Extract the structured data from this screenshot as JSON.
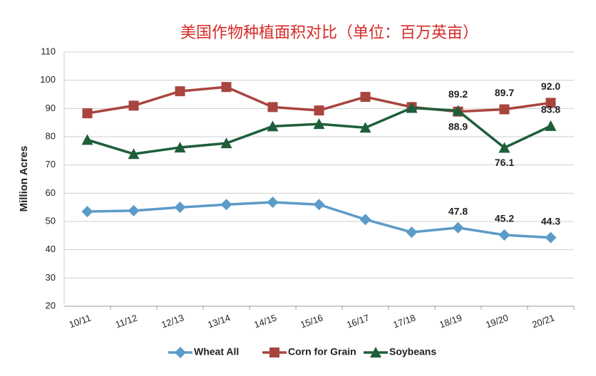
{
  "chart_data": {
    "type": "line",
    "title": "美国作物种植面积对比（单位：百万英亩）",
    "ylabel": "Million Acres",
    "categories": [
      "10/11",
      "11/12",
      "12/13",
      "13/14",
      "14/15",
      "15/16",
      "16/17",
      "17/18",
      "18/19",
      "19/20",
      "20/21"
    ],
    "series": [
      {
        "name": "Wheat All",
        "color": "#5b9bc8",
        "values": [
          53.5,
          53.8,
          55.0,
          56.0,
          56.8,
          56.0,
          50.7,
          46.2,
          47.8,
          45.2,
          44.3
        ],
        "value_labels": [
          null,
          null,
          null,
          null,
          null,
          null,
          null,
          null,
          "47.8",
          "45.2",
          "44.3"
        ]
      },
      {
        "name": "Corn for Grain",
        "color": "#a9453f",
        "values": [
          88.3,
          91.0,
          96.1,
          97.6,
          90.5,
          89.3,
          94.1,
          90.5,
          88.9,
          89.7,
          92.0
        ],
        "value_labels": [
          null,
          null,
          null,
          null,
          null,
          null,
          null,
          null,
          "88.9",
          "89.7",
          "92.0"
        ]
      },
      {
        "name": "Soybeans",
        "color": "#1e5e3b",
        "values": [
          78.9,
          73.9,
          76.2,
          77.7,
          83.7,
          84.5,
          83.2,
          90.2,
          89.2,
          76.1,
          83.8
        ],
        "value_labels": [
          null,
          null,
          null,
          null,
          null,
          null,
          null,
          null,
          "89.2",
          "76.1",
          "83.8"
        ]
      }
    ],
    "ylim": [
      20,
      110
    ],
    "yticks": [
      20,
      30,
      40,
      50,
      60,
      70,
      80,
      90,
      100,
      110
    ],
    "grid": true,
    "legend": "bottom"
  }
}
